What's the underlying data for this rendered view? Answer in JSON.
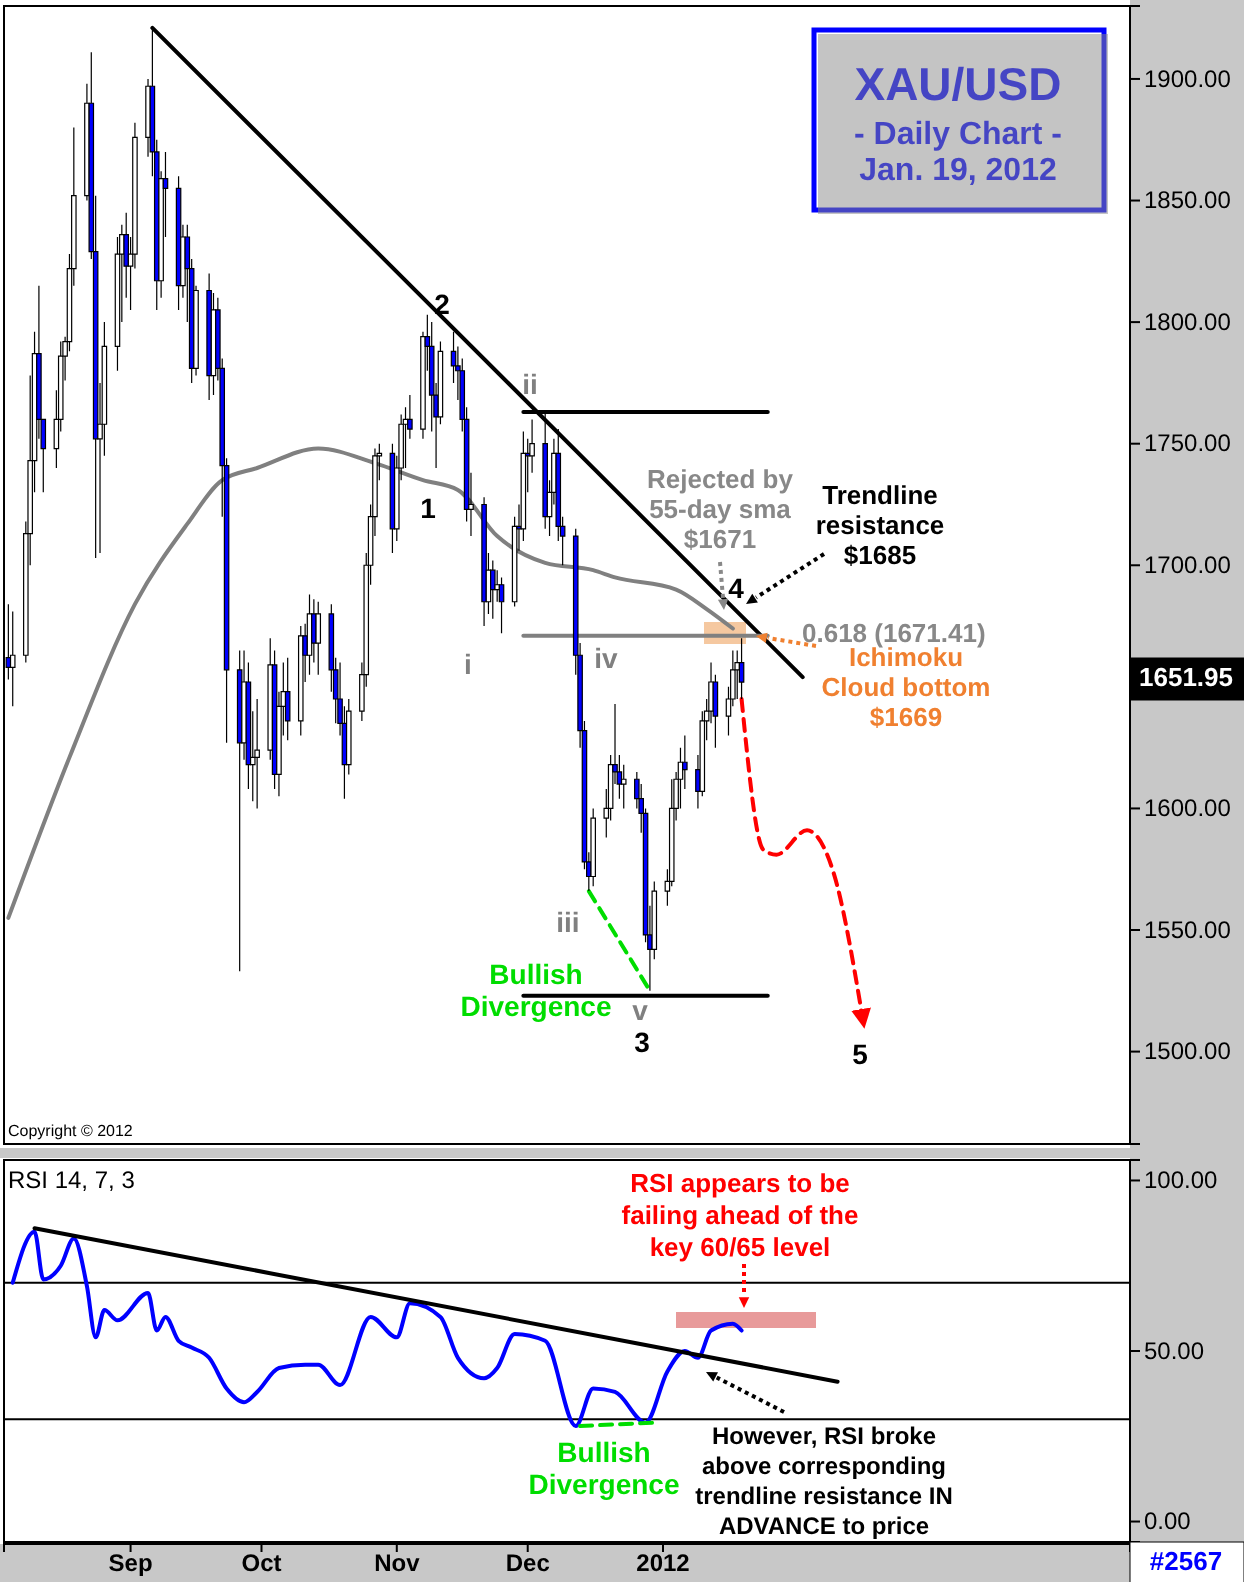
{
  "chart_data": [
    {
      "type": "candlestick",
      "title": "XAU/USD",
      "subtitle": "- Daily Chart - Jan. 19, 2012",
      "x": [
        "2011-08-04",
        "2011-08-05",
        "2011-08-08",
        "2011-08-09",
        "2011-08-10",
        "2011-08-11",
        "2011-08-12",
        "2011-08-15",
        "2011-08-16",
        "2011-08-17",
        "2011-08-18",
        "2011-08-19",
        "2011-08-22",
        "2011-08-23",
        "2011-08-24",
        "2011-08-25",
        "2011-08-26",
        "2011-08-29",
        "2011-08-30",
        "2011-08-31",
        "2011-09-01",
        "2011-09-02",
        "2011-09-05",
        "2011-09-06",
        "2011-09-07",
        "2011-09-08",
        "2011-09-09",
        "2011-09-12",
        "2011-09-13",
        "2011-09-14",
        "2011-09-15",
        "2011-09-16",
        "2011-09-19",
        "2011-09-20",
        "2011-09-21",
        "2011-09-22",
        "2011-09-23",
        "2011-09-26",
        "2011-09-27",
        "2011-09-28",
        "2011-09-29",
        "2011-09-30",
        "2011-10-03",
        "2011-10-04",
        "2011-10-05",
        "2011-10-06",
        "2011-10-07",
        "2011-10-10",
        "2011-10-11",
        "2011-10-12",
        "2011-10-13",
        "2011-10-14",
        "2011-10-17",
        "2011-10-18",
        "2011-10-19",
        "2011-10-20",
        "2011-10-21",
        "2011-10-24",
        "2011-10-25",
        "2011-10-26",
        "2011-10-27",
        "2011-10-28",
        "2011-10-31",
        "2011-11-01",
        "2011-11-02",
        "2011-11-03",
        "2011-11-04",
        "2011-11-07",
        "2011-11-08",
        "2011-11-09",
        "2011-11-10",
        "2011-11-11",
        "2011-11-14",
        "2011-11-15",
        "2011-11-16",
        "2011-11-17",
        "2011-11-18",
        "2011-11-21",
        "2011-11-22",
        "2011-11-23",
        "2011-11-24",
        "2011-11-25",
        "2011-11-28",
        "2011-11-29",
        "2011-11-30",
        "2011-12-01",
        "2011-12-02",
        "2011-12-05",
        "2011-12-06",
        "2011-12-07",
        "2011-12-08",
        "2011-12-09",
        "2011-12-12",
        "2011-12-13",
        "2011-12-14",
        "2011-12-15",
        "2011-12-16",
        "2011-12-19",
        "2011-12-20",
        "2011-12-21",
        "2011-12-22",
        "2011-12-23",
        "2011-12-26",
        "2011-12-27",
        "2011-12-28",
        "2011-12-29",
        "2011-12-30",
        "2012-01-02",
        "2012-01-03",
        "2012-01-04",
        "2012-01-05",
        "2012-01-06",
        "2012-01-09",
        "2012-01-10",
        "2012-01-11",
        "2012-01-12",
        "2012-01-13",
        "2012-01-16",
        "2012-01-17",
        "2012-01-18",
        "2012-01-19"
      ],
      "ohlc": [
        [
          1662,
          1684,
          1653,
          1658
        ],
        [
          1658,
          1681,
          1642,
          1663
        ],
        [
          1663,
          1718,
          1660,
          1713
        ],
        [
          1713,
          1778,
          1700,
          1743
        ],
        [
          1743,
          1796,
          1730,
          1787
        ],
        [
          1787,
          1815,
          1752,
          1760
        ],
        [
          1760,
          1760,
          1730,
          1748
        ],
        [
          1748,
          1772,
          1740,
          1760
        ],
        [
          1760,
          1792,
          1755,
          1786
        ],
        [
          1786,
          1794,
          1776,
          1792
        ],
        [
          1792,
          1828,
          1788,
          1822
        ],
        [
          1822,
          1880,
          1815,
          1852
        ],
        [
          1852,
          1898,
          1850,
          1890
        ],
        [
          1890,
          1911,
          1826,
          1829
        ],
        [
          1829,
          1852,
          1703,
          1752
        ],
        [
          1752,
          1775,
          1705,
          1758
        ],
        [
          1758,
          1800,
          1745,
          1790
        ],
        [
          1790,
          1835,
          1780,
          1828
        ],
        [
          1828,
          1840,
          1800,
          1836
        ],
        [
          1836,
          1845,
          1810,
          1823
        ],
        [
          1823,
          1835,
          1805,
          1828
        ],
        [
          1828,
          1882,
          1822,
          1876
        ],
        [
          1876,
          1900,
          1868,
          1897
        ],
        [
          1897,
          1921,
          1860,
          1870
        ],
        [
          1870,
          1875,
          1805,
          1817
        ],
        [
          1817,
          1862,
          1810,
          1859
        ],
        [
          1859,
          1870,
          1835,
          1855
        ],
        [
          1855,
          1860,
          1805,
          1815
        ],
        [
          1815,
          1840,
          1810,
          1835
        ],
        [
          1835,
          1840,
          1800,
          1822
        ],
        [
          1822,
          1826,
          1775,
          1781
        ],
        [
          1781,
          1815,
          1778,
          1813
        ],
        [
          1813,
          1820,
          1768,
          1778
        ],
        [
          1778,
          1812,
          1770,
          1805
        ],
        [
          1805,
          1810,
          1776,
          1781
        ],
        [
          1781,
          1785,
          1720,
          1741
        ],
        [
          1741,
          1744,
          1627,
          1657
        ],
        [
          1657,
          1665,
          1533,
          1627
        ],
        [
          1627,
          1665,
          1620,
          1652
        ],
        [
          1652,
          1660,
          1608,
          1618
        ],
        [
          1618,
          1640,
          1603,
          1621
        ],
        [
          1621,
          1645,
          1600,
          1624
        ],
        [
          1624,
          1670,
          1620,
          1659
        ],
        [
          1659,
          1665,
          1608,
          1614
        ],
        [
          1614,
          1648,
          1605,
          1642
        ],
        [
          1642,
          1660,
          1630,
          1648
        ],
        [
          1648,
          1662,
          1628,
          1636
        ],
        [
          1636,
          1675,
          1630,
          1671
        ],
        [
          1671,
          1676,
          1652,
          1663
        ],
        [
          1663,
          1688,
          1655,
          1680
        ],
        [
          1680,
          1686,
          1660,
          1668
        ],
        [
          1668,
          1685,
          1655,
          1680
        ],
        [
          1680,
          1684,
          1648,
          1657
        ],
        [
          1657,
          1662,
          1635,
          1645
        ],
        [
          1645,
          1660,
          1630,
          1635
        ],
        [
          1635,
          1642,
          1604,
          1618
        ],
        [
          1618,
          1645,
          1614,
          1640
        ],
        [
          1640,
          1660,
          1636,
          1655
        ],
        [
          1655,
          1705,
          1650,
          1700
        ],
        [
          1700,
          1725,
          1692,
          1720
        ],
        [
          1720,
          1748,
          1712,
          1745
        ],
        [
          1745,
          1750,
          1735,
          1746
        ],
        [
          1746,
          1750,
          1705,
          1715
        ],
        [
          1715,
          1745,
          1710,
          1740
        ],
        [
          1740,
          1762,
          1735,
          1758
        ],
        [
          1758,
          1765,
          1740,
          1760
        ],
        [
          1760,
          1770,
          1752,
          1756
        ],
        [
          1756,
          1796,
          1752,
          1794
        ],
        [
          1794,
          1803,
          1780,
          1790
        ],
        [
          1790,
          1800,
          1755,
          1770
        ],
        [
          1770,
          1775,
          1740,
          1761
        ],
        [
          1761,
          1792,
          1758,
          1788
        ],
        [
          1788,
          1796,
          1775,
          1782
        ],
        [
          1782,
          1790,
          1768,
          1780
        ],
        [
          1780,
          1785,
          1755,
          1760
        ],
        [
          1760,
          1765,
          1718,
          1723
        ],
        [
          1723,
          1738,
          1712,
          1725
        ],
        [
          1725,
          1728,
          1675,
          1685
        ],
        [
          1685,
          1705,
          1680,
          1698
        ],
        [
          1698,
          1702,
          1678,
          1690
        ],
        [
          1690,
          1698,
          1685,
          1692
        ],
        [
          1692,
          1695,
          1672,
          1685
        ],
        [
          1685,
          1720,
          1683,
          1716
        ],
        [
          1716,
          1725,
          1706,
          1715
        ],
        [
          1715,
          1755,
          1710,
          1746
        ],
        [
          1746,
          1752,
          1730,
          1745
        ],
        [
          1745,
          1760,
          1738,
          1750
        ],
        [
          1750,
          1763,
          1715,
          1720
        ],
        [
          1720,
          1735,
          1712,
          1730
        ],
        [
          1730,
          1752,
          1725,
          1746
        ],
        [
          1746,
          1756,
          1710,
          1716
        ],
        [
          1716,
          1720,
          1700,
          1712
        ],
        [
          1712,
          1715,
          1655,
          1663
        ],
        [
          1663,
          1668,
          1625,
          1632
        ],
        [
          1632,
          1636,
          1575,
          1578
        ],
        [
          1578,
          1582,
          1566,
          1572
        ],
        [
          1572,
          1600,
          1568,
          1596
        ],
        [
          1596,
          1608,
          1588,
          1600
        ],
        [
          1600,
          1622,
          1595,
          1618
        ],
        [
          1618,
          1643,
          1610,
          1615
        ],
        [
          1615,
          1622,
          1604,
          1610
        ],
        [
          1610,
          1618,
          1600,
          1612
        ],
        [
          1612,
          1615,
          1600,
          1604
        ],
        [
          1604,
          1610,
          1590,
          1598
        ],
        [
          1598,
          1600,
          1545,
          1548
        ],
        [
          1548,
          1560,
          1525,
          1542
        ],
        [
          1542,
          1570,
          1538,
          1566
        ],
        [
          1566,
          1575,
          1560,
          1570
        ],
        [
          1570,
          1612,
          1568,
          1600
        ],
        [
          1600,
          1615,
          1595,
          1612
        ],
        [
          1612,
          1625,
          1600,
          1619
        ],
        [
          1619,
          1630,
          1608,
          1616
        ],
        [
          1616,
          1622,
          1600,
          1607
        ],
        [
          1607,
          1640,
          1605,
          1636
        ],
        [
          1636,
          1645,
          1628,
          1640
        ],
        [
          1640,
          1660,
          1635,
          1652
        ],
        [
          1652,
          1655,
          1625,
          1638
        ],
        [
          1638,
          1650,
          1630,
          1645
        ],
        [
          1645,
          1665,
          1642,
          1657
        ],
        [
          1657,
          1665,
          1645,
          1660
        ],
        [
          1660,
          1670,
          1645,
          1651.95
        ]
      ],
      "series": [
        {
          "type": "line",
          "color": "#808080",
          "x": [
            "2011-08-04",
            "2011-08-18",
            "2011-09-02",
            "2011-09-14",
            "2011-09-22",
            "2011-09-30",
            "2011-10-14",
            "2011-10-27",
            "2011-11-07",
            "2011-11-15",
            "2011-11-24",
            "2011-12-05",
            "2011-12-16",
            "2011-12-21",
            "2012-01-04",
            "2012-01-11",
            "2012-01-17"
          ],
          "values": [
            1555,
            1621,
            1684,
            1717,
            1735,
            1740,
            1748,
            1742,
            1735,
            1731,
            1712,
            1701,
            1698,
            1695,
            1690,
            1682,
            1674
          ]
        },
        {
          "type": "line",
          "color": "#000000",
          "x": [
            "2011-09-06",
            "2012-02-02"
          ],
          "values": [
            1921,
            1654
          ]
        },
        {
          "type": "line",
          "color": "#000000",
          "x": [
            "2011-11-30",
            "2012-01-25"
          ],
          "values": [
            1763,
            1763
          ]
        },
        {
          "type": "line",
          "color": "#808080",
          "x": [
            "2011-11-30",
            "2012-01-25"
          ],
          "values": [
            1671,
            1671
          ]
        },
        {
          "type": "line",
          "color": "#000000",
          "x": [
            "2011-11-30",
            "2012-01-25"
          ],
          "values": [
            1523,
            1523
          ]
        },
        {
          "type": "line",
          "color": "#ff0000",
          "line_style": "dashed",
          "x": [
            "2012-01-19",
            "2012-01-24",
            "2012-01-27",
            "2012-02-03",
            "2012-02-09",
            "2012-02-16"
          ],
          "values": [
            1645,
            1583,
            1581,
            1591,
            1574,
            1511
          ]
        },
        {
          "type": "line",
          "color": "#00dd00",
          "line_style": "dashed",
          "x": [
            "2011-12-15",
            "2011-12-29"
          ],
          "values": [
            1566,
            1525
          ]
        }
      ],
      "xlim": [
        "2011-08-03",
        "2012-04-17"
      ],
      "ylim": [
        1462,
        1930
      ],
      "yticks": [
        {
          "value": 1500,
          "label": "1500.00"
        },
        {
          "value": 1550,
          "label": "1550.00"
        },
        {
          "value": 1600,
          "label": "1600.00"
        },
        {
          "value": 1700,
          "label": "1700.00"
        },
        {
          "value": 1750,
          "label": "1750.00"
        },
        {
          "value": 1800,
          "label": "1800.00"
        },
        {
          "value": 1850,
          "label": "1850.00"
        },
        {
          "value": 1900,
          "label": "1900.00"
        }
      ],
      "tick_labels": "y",
      "annotations": [
        "2",
        "1",
        "ii",
        "i",
        "iii",
        "iv",
        "v",
        "3",
        "4",
        "5",
        "Bullish Divergence",
        "Rejected by 55-day sma $1671",
        "Trendline resistance $1685",
        "0.618 (1671.41)",
        "Ichimoku Cloud bottom $1669",
        "1651.95",
        "Copyright © 2012"
      ]
    },
    {
      "type": "line",
      "title": "RSI 14, 7, 3",
      "series": [
        {
          "color": "#0000ff",
          "x": [
            "2011-08-05",
            "2011-08-10",
            "2011-08-12",
            "2011-08-16",
            "2011-08-19",
            "2011-08-22",
            "2011-08-24",
            "2011-08-26",
            "2011-08-29",
            "2011-09-05",
            "2011-09-07",
            "2011-09-09",
            "2011-09-12",
            "2011-09-15",
            "2011-09-19",
            "2011-09-23",
            "2011-09-27",
            "2011-09-30",
            "2011-10-05",
            "2011-10-11",
            "2011-10-14",
            "2011-10-19",
            "2011-10-26",
            "2011-11-01",
            "2011-11-04",
            "2011-11-11",
            "2011-11-15",
            "2011-11-21",
            "2011-11-24",
            "2011-11-28",
            "2011-12-05",
            "2011-12-12",
            "2011-12-16",
            "2011-12-21",
            "2011-12-28",
            "2012-01-02",
            "2012-01-06",
            "2012-01-09",
            "2012-01-12",
            "2012-01-17",
            "2012-01-19"
          ],
          "values": [
            70,
            85,
            71,
            75,
            83,
            69,
            54,
            62,
            59,
            67,
            56,
            60,
            53,
            51,
            48,
            39,
            35,
            38,
            45,
            46,
            46,
            40,
            60,
            54,
            64,
            60,
            48,
            42,
            45,
            55,
            53,
            28,
            39,
            38,
            29,
            44,
            50,
            48,
            56,
            58,
            56
          ]
        },
        {
          "color": "#000000",
          "x": [
            "2011-08-10",
            "2012-02-10"
          ],
          "values": [
            86,
            41
          ]
        },
        {
          "color": "#00dd00",
          "line_style": "dashed",
          "x": [
            "2011-12-13",
            "2011-12-30"
          ],
          "values": [
            28,
            29
          ]
        }
      ],
      "xlim": [
        "2011-08-03",
        "2012-04-17"
      ],
      "ylim": [
        -6,
        106
      ],
      "xticks": [
        {
          "value": "2011-09-01",
          "label": "Sep"
        },
        {
          "value": "2011-10-01",
          "label": "Oct"
        },
        {
          "value": "2011-11-01",
          "label": "Nov"
        },
        {
          "value": "2011-12-01",
          "label": "Dec"
        },
        {
          "value": "2012-01-01",
          "label": "2012"
        }
      ],
      "yticks": [
        {
          "value": 0,
          "label": "0.00"
        },
        {
          "value": 50,
          "label": "50.00"
        },
        {
          "value": 100,
          "label": "100.00"
        }
      ],
      "ref_lines": [
        {
          "axis": "y",
          "value": 70,
          "color": "#000000"
        },
        {
          "axis": "y",
          "value": 30,
          "color": "#000000"
        }
      ],
      "annotations": [
        "RSI appears to be failing ahead of the key 60/65 level",
        "Bullish Divergence",
        "However, RSI broke above corresponding trendline resistance IN ADVANCE to price",
        "#2567"
      ]
    }
  ]
}
